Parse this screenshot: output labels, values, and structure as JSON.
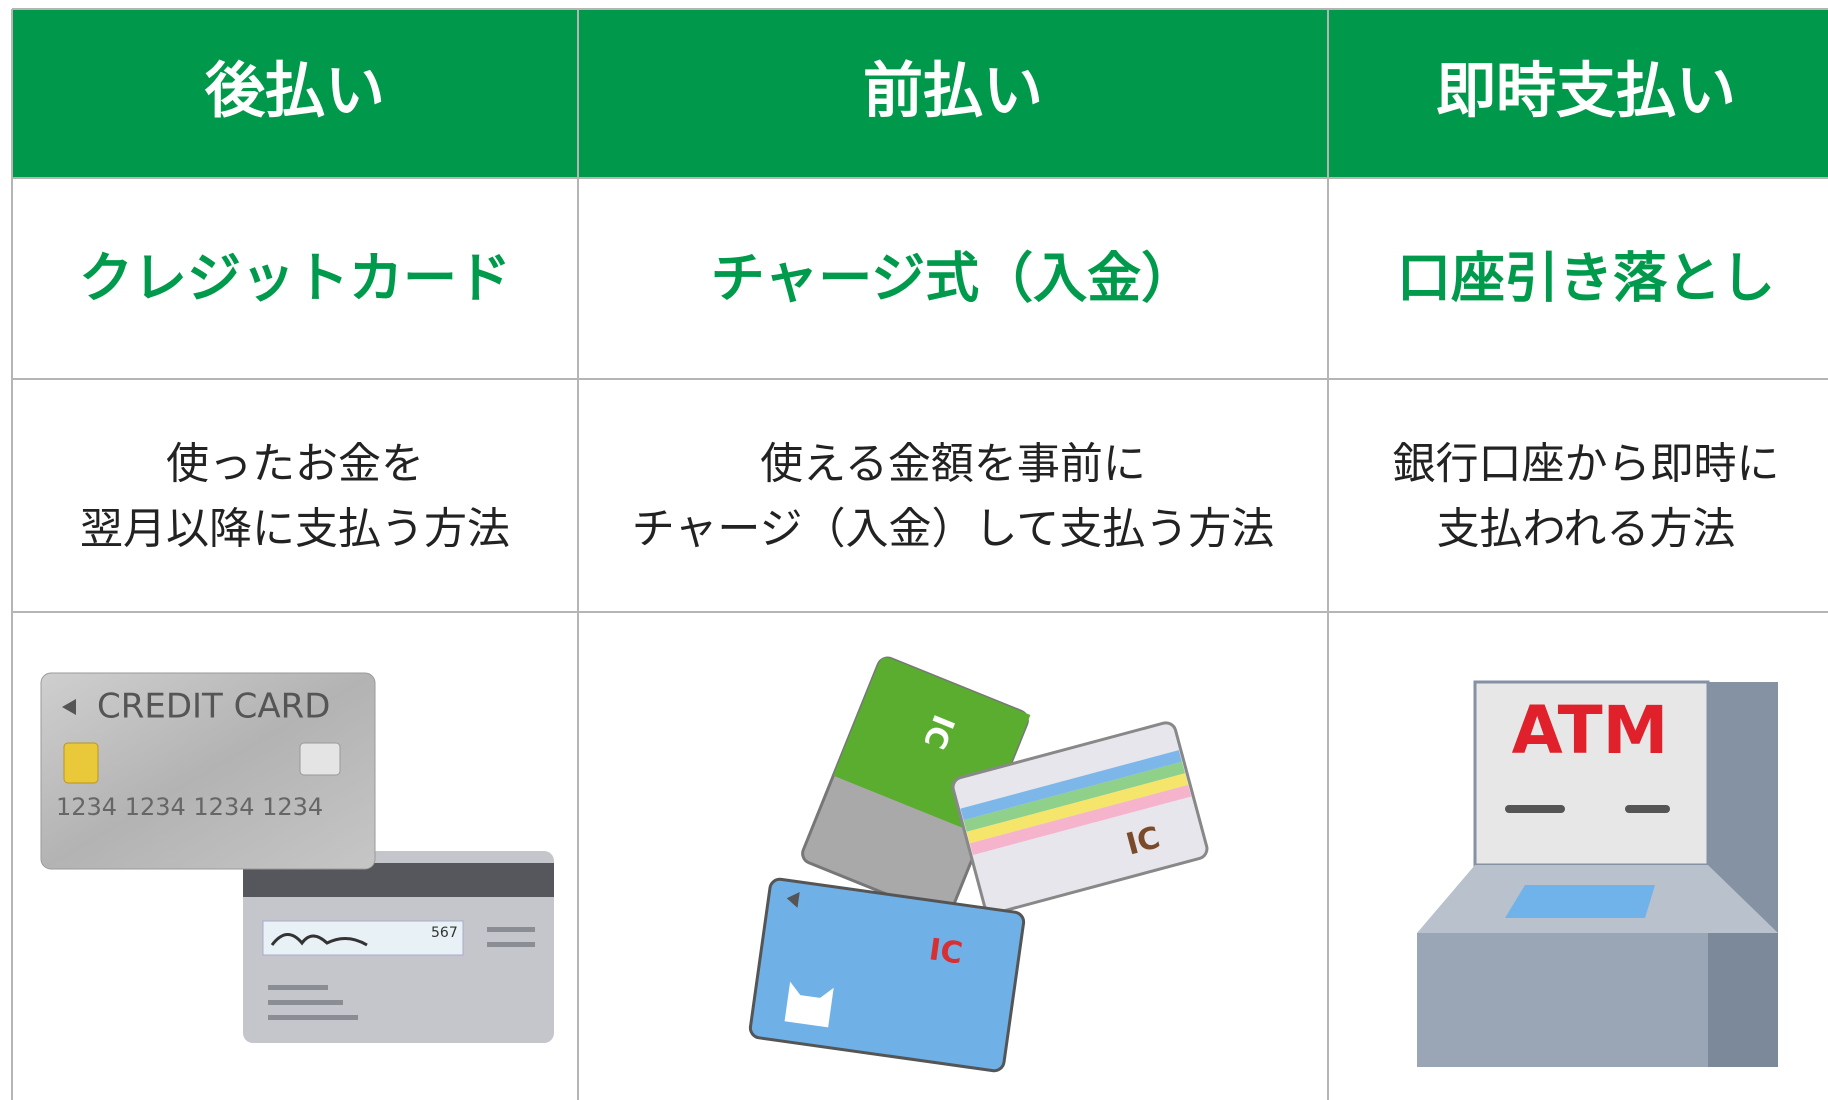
{
  "columns": [
    {
      "header": "後払い",
      "method": "クレジットカード",
      "description": [
        "使ったお金を",
        "翌月以降に支払う方法"
      ],
      "illustration_texts": [
        "CREDIT CARD",
        "1234 1234 1234 1234",
        "567"
      ]
    },
    {
      "header": "前払い",
      "method": "チャージ式（入金）",
      "description": [
        "使える金額を事前に",
        "チャージ（入金）して支払う方法"
      ],
      "illustration_texts": [
        "IC",
        "IC",
        "IC"
      ]
    },
    {
      "header": "即時支払い",
      "method": "口座引き落とし",
      "description": [
        "銀行口座から即時に",
        "支払われる方法"
      ],
      "illustration_texts": [
        "ATM"
      ]
    }
  ]
}
